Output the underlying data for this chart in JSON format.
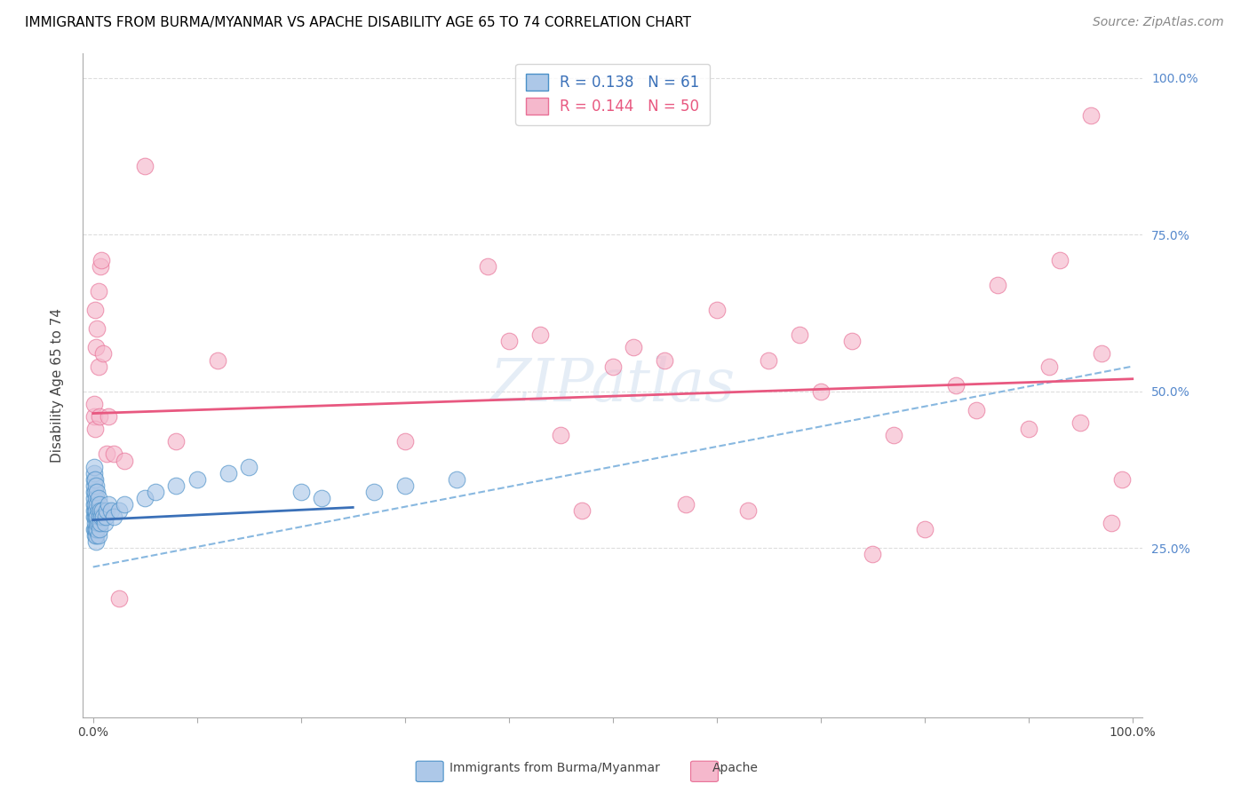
{
  "title": "IMMIGRANTS FROM BURMA/MYANMAR VS APACHE DISABILITY AGE 65 TO 74 CORRELATION CHART",
  "source": "Source: ZipAtlas.com",
  "ylabel": "Disability Age 65 to 74",
  "x_legend": "Immigrants from Burma/Myanmar",
  "y_legend": "Apache",
  "R_blue": 0.138,
  "N_blue": 61,
  "R_pink": 0.144,
  "N_pink": 50,
  "blue_fill": "#adc8e8",
  "pink_fill": "#f5b8cc",
  "blue_edge": "#4a90c8",
  "pink_edge": "#e87096",
  "blue_line": "#3a70b8",
  "pink_line": "#e85880",
  "dash_line": "#88b8e0",
  "watermark": "ZIPatlas",
  "grid_color": "#dddddd",
  "right_tick_color": "#5588cc",
  "blue_x": [
    0.001,
    0.001,
    0.001,
    0.001,
    0.001,
    0.001,
    0.001,
    0.001,
    0.001,
    0.001,
    0.002,
    0.002,
    0.002,
    0.002,
    0.002,
    0.002,
    0.002,
    0.002,
    0.003,
    0.003,
    0.003,
    0.003,
    0.003,
    0.003,
    0.003,
    0.004,
    0.004,
    0.004,
    0.004,
    0.004,
    0.005,
    0.005,
    0.005,
    0.005,
    0.006,
    0.006,
    0.006,
    0.007,
    0.007,
    0.008,
    0.009,
    0.01,
    0.011,
    0.012,
    0.013,
    0.015,
    0.017,
    0.02,
    0.025,
    0.03,
    0.05,
    0.06,
    0.08,
    0.1,
    0.13,
    0.15,
    0.2,
    0.22,
    0.27,
    0.3,
    0.35
  ],
  "blue_y": [
    0.28,
    0.3,
    0.31,
    0.32,
    0.33,
    0.34,
    0.35,
    0.36,
    0.37,
    0.38,
    0.27,
    0.28,
    0.29,
    0.3,
    0.31,
    0.32,
    0.34,
    0.36,
    0.26,
    0.27,
    0.28,
    0.3,
    0.31,
    0.33,
    0.35,
    0.28,
    0.29,
    0.3,
    0.32,
    0.34,
    0.27,
    0.29,
    0.31,
    0.33,
    0.28,
    0.3,
    0.32,
    0.29,
    0.31,
    0.3,
    0.31,
    0.3,
    0.29,
    0.3,
    0.31,
    0.32,
    0.31,
    0.3,
    0.31,
    0.32,
    0.33,
    0.34,
    0.35,
    0.36,
    0.37,
    0.38,
    0.34,
    0.33,
    0.34,
    0.35,
    0.36
  ],
  "pink_x": [
    0.001,
    0.001,
    0.002,
    0.002,
    0.003,
    0.004,
    0.005,
    0.005,
    0.006,
    0.007,
    0.008,
    0.01,
    0.013,
    0.015,
    0.02,
    0.025,
    0.03,
    0.05,
    0.08,
    0.12,
    0.3,
    0.38,
    0.4,
    0.43,
    0.45,
    0.47,
    0.5,
    0.52,
    0.55,
    0.57,
    0.6,
    0.63,
    0.65,
    0.68,
    0.7,
    0.73,
    0.75,
    0.77,
    0.8,
    0.83,
    0.85,
    0.87,
    0.9,
    0.92,
    0.93,
    0.95,
    0.96,
    0.97,
    0.98,
    0.99
  ],
  "pink_y": [
    0.46,
    0.48,
    0.44,
    0.63,
    0.57,
    0.6,
    0.54,
    0.66,
    0.46,
    0.7,
    0.71,
    0.56,
    0.4,
    0.46,
    0.4,
    0.17,
    0.39,
    0.86,
    0.42,
    0.55,
    0.42,
    0.7,
    0.58,
    0.59,
    0.43,
    0.31,
    0.54,
    0.57,
    0.55,
    0.32,
    0.63,
    0.31,
    0.55,
    0.59,
    0.5,
    0.58,
    0.24,
    0.43,
    0.28,
    0.51,
    0.47,
    0.67,
    0.44,
    0.54,
    0.71,
    0.45,
    0.94,
    0.56,
    0.29,
    0.36
  ],
  "blue_line_intercept": 0.295,
  "blue_line_slope": 0.08,
  "pink_line_intercept": 0.465,
  "pink_line_slope": 0.055,
  "dash_line_intercept": 0.22,
  "dash_line_slope": 0.32
}
